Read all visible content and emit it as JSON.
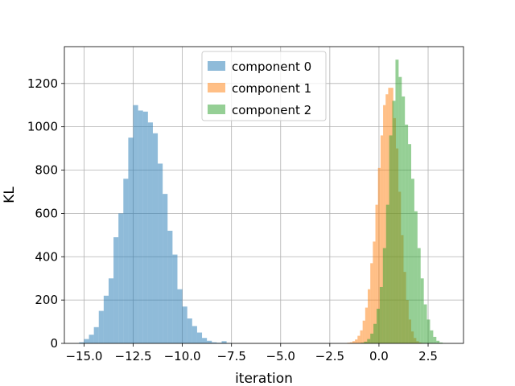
{
  "chart_data": {
    "type": "histogram",
    "title": "",
    "xlabel": "iteration",
    "ylabel": "KL",
    "xlim": [
      -16.0,
      4.3
    ],
    "ylim": [
      0,
      1370
    ],
    "grid": true,
    "legend_placement": "upper-center",
    "xticks": [
      -15.0,
      -12.5,
      -10.0,
      -7.5,
      -5.0,
      -2.5,
      0.0,
      2.5
    ],
    "xtick_labels": [
      "−15.0",
      "−12.5",
      "−10.0",
      "−7.5",
      "−5.0",
      "−2.5",
      "0.0",
      "2.5"
    ],
    "yticks": [
      0,
      200,
      400,
      600,
      800,
      1000,
      1200
    ],
    "ytick_labels": [
      "0",
      "200",
      "400",
      "600",
      "800",
      "1000",
      "1200"
    ],
    "series": [
      {
        "name": "component 0",
        "color": "#1f77b4",
        "alpha": 0.5,
        "bin_width": 0.25,
        "bins": [
          [
            -15.25,
            5
          ],
          [
            -15.0,
            20
          ],
          [
            -14.75,
            40
          ],
          [
            -14.5,
            75
          ],
          [
            -14.25,
            150
          ],
          [
            -14.0,
            220
          ],
          [
            -13.75,
            300
          ],
          [
            -13.5,
            490
          ],
          [
            -13.25,
            600
          ],
          [
            -13.0,
            760
          ],
          [
            -12.75,
            950
          ],
          [
            -12.5,
            1100
          ],
          [
            -12.25,
            1075
          ],
          [
            -12.0,
            1070
          ],
          [
            -11.75,
            1020
          ],
          [
            -11.5,
            970
          ],
          [
            -11.25,
            830
          ],
          [
            -11.0,
            690
          ],
          [
            -10.75,
            520
          ],
          [
            -10.5,
            410
          ],
          [
            -10.25,
            250
          ],
          [
            -10.0,
            170
          ],
          [
            -9.75,
            115
          ],
          [
            -9.5,
            80
          ],
          [
            -9.25,
            50
          ],
          [
            -9.0,
            25
          ],
          [
            -8.75,
            12
          ],
          [
            -8.5,
            5
          ],
          [
            -8.25,
            3
          ],
          [
            -8.0,
            10
          ],
          [
            -7.75,
            2
          ]
        ]
      },
      {
        "name": "component 1",
        "color": "#ff7f0e",
        "alpha": 0.5,
        "bin_width": 0.13,
        "bins": [
          [
            -1.61,
            3
          ],
          [
            -1.48,
            5
          ],
          [
            -1.35,
            10
          ],
          [
            -1.22,
            18
          ],
          [
            -1.09,
            35
          ],
          [
            -0.96,
            60
          ],
          [
            -0.83,
            105
          ],
          [
            -0.7,
            165
          ],
          [
            -0.57,
            250
          ],
          [
            -0.44,
            370
          ],
          [
            -0.31,
            470
          ],
          [
            -0.18,
            640
          ],
          [
            -0.05,
            810
          ],
          [
            0.08,
            960
          ],
          [
            0.21,
            1100
          ],
          [
            0.34,
            1150
          ],
          [
            0.47,
            1180
          ],
          [
            0.6,
            1180
          ],
          [
            0.73,
            1040
          ],
          [
            0.86,
            900
          ],
          [
            0.99,
            700
          ],
          [
            1.12,
            500
          ],
          [
            1.25,
            330
          ],
          [
            1.38,
            200
          ],
          [
            1.51,
            110
          ],
          [
            1.64,
            55
          ],
          [
            1.77,
            25
          ],
          [
            1.9,
            10
          ],
          [
            2.03,
            4
          ],
          [
            2.16,
            2
          ]
        ]
      },
      {
        "name": "component 2",
        "color": "#2ca02c",
        "alpha": 0.5,
        "bin_width": 0.16,
        "bins": [
          [
            -0.92,
            3
          ],
          [
            -0.76,
            8
          ],
          [
            -0.6,
            20
          ],
          [
            -0.44,
            45
          ],
          [
            -0.28,
            90
          ],
          [
            -0.12,
            160
          ],
          [
            0.04,
            260
          ],
          [
            0.2,
            440
          ],
          [
            0.36,
            640
          ],
          [
            0.52,
            960
          ],
          [
            0.68,
            1120
          ],
          [
            0.84,
            1310
          ],
          [
            1.0,
            1230
          ],
          [
            1.16,
            1140
          ],
          [
            1.32,
            1010
          ],
          [
            1.48,
            920
          ],
          [
            1.64,
            760
          ],
          [
            1.8,
            610
          ],
          [
            1.96,
            440
          ],
          [
            2.12,
            300
          ],
          [
            2.28,
            180
          ],
          [
            2.44,
            110
          ],
          [
            2.6,
            60
          ],
          [
            2.76,
            30
          ],
          [
            2.92,
            12
          ],
          [
            3.08,
            4
          ],
          [
            3.24,
            1
          ]
        ]
      }
    ]
  }
}
